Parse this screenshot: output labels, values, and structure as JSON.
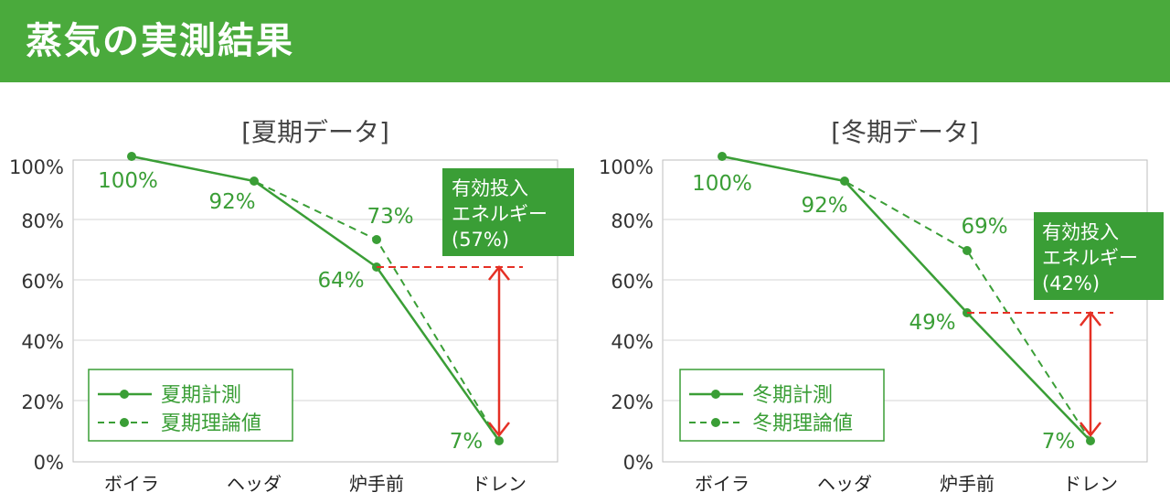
{
  "header": {
    "title": "蒸気の実測結果"
  },
  "colors": {
    "banner": "#4aaa3c",
    "series": "#3a9e36",
    "arrow": "#e53025",
    "box": "#3a9e36",
    "grid": "#d4d4d4",
    "text": "#333333"
  },
  "chart_data": [
    {
      "type": "line",
      "title": "[夏期データ]",
      "categories": [
        "ボイラ",
        "ヘッダ",
        "炉手前",
        "ドレン"
      ],
      "yticks": [
        "0%",
        "20%",
        "40%",
        "60%",
        "80%",
        "100%"
      ],
      "ylim": [
        0,
        100
      ],
      "grid": true,
      "series": [
        {
          "name": "夏期計測",
          "values": [
            100,
            92,
            64,
            7
          ],
          "style": "solid"
        },
        {
          "name": "夏期理論値",
          "values": [
            100,
            92,
            73,
            7
          ],
          "style": "dashed"
        }
      ],
      "point_labels": [
        "100%",
        "92%",
        "73%",
        "64%",
        "7%"
      ],
      "annotation": {
        "lines": [
          "有効投入",
          "エネルギー",
          "(57%)"
        ],
        "from": 64,
        "to": 7
      },
      "legend": "bottom-left"
    },
    {
      "type": "line",
      "title": "[冬期データ]",
      "categories": [
        "ボイラ",
        "ヘッダ",
        "炉手前",
        "ドレン"
      ],
      "yticks": [
        "0%",
        "20%",
        "40%",
        "60%",
        "80%",
        "100%"
      ],
      "ylim": [
        0,
        100
      ],
      "grid": true,
      "series": [
        {
          "name": "冬期計測",
          "values": [
            100,
            92,
            49,
            7
          ],
          "style": "solid"
        },
        {
          "name": "冬期理論値",
          "values": [
            100,
            92,
            69,
            7
          ],
          "style": "dashed"
        }
      ],
      "point_labels": [
        "100%",
        "92%",
        "69%",
        "49%",
        "7%"
      ],
      "annotation": {
        "lines": [
          "有効投入",
          "エネルギー",
          "(42%)"
        ],
        "from": 49,
        "to": 7
      },
      "legend": "bottom-left"
    }
  ]
}
